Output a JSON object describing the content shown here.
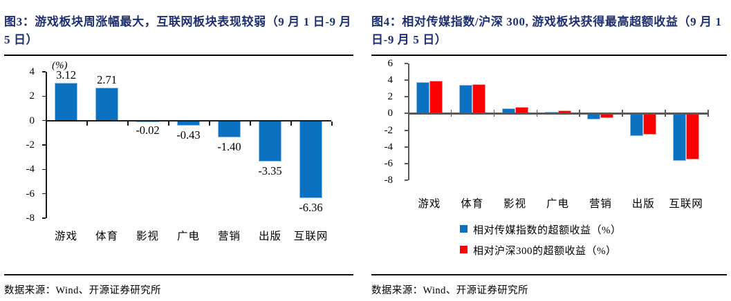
{
  "figures": {
    "left": {
      "title": "图3：游戏板块周涨幅最大，互联网板块表现较弱（9 月 1 日-9 月 5 日）",
      "source": "数据来源：Wind、开源证券研究所"
    },
    "right": {
      "title": "图4：相对传媒指数/沪深 300, 游戏板块获得最高超额收益（9 月 1 日-9 月 5 日）",
      "source": "数据来源：Wind、开源证券研究所"
    }
  },
  "colors": {
    "title_navy": "#1F3070",
    "bar_blue": "#0B72C1",
    "bar_blue_border": "#8FC0E9",
    "bar_red": "#FC0000",
    "bar_red_border": "#FF9D9D",
    "axis_black": "#1a1a1a",
    "axis_gray": "#595959"
  },
  "chart_data": [
    {
      "type": "bar",
      "title": "图3：游戏板块周涨幅最大，互联网板块表现较弱（9 月 1 日-9 月 5 日）",
      "unit_label": "(%)",
      "categories": [
        "游戏",
        "体育",
        "影视",
        "广电",
        "营销",
        "出版",
        "互联网"
      ],
      "values": [
        3.12,
        2.71,
        -0.02,
        -0.43,
        -1.4,
        -3.35,
        -6.36
      ],
      "data_labels": [
        "3.12",
        "2.71",
        "-0.02",
        "-0.43",
        "-1.40",
        "-3.35",
        "-6.36"
      ],
      "ylim": [
        -8,
        4
      ],
      "yticks": [
        4,
        2,
        0,
        -2,
        -4,
        -6,
        -8
      ],
      "grid": false,
      "legend": "none",
      "bar_color": "#0B72C1",
      "bar_border": "#8FC0E9"
    },
    {
      "type": "bar",
      "title": "图4：相对传媒指数/沪深 300, 游戏板块获得最高超额收益（9 月 1 日-9 月 5 日）",
      "categories": [
        "游戏",
        "体育",
        "影视",
        "广电",
        "营销",
        "出版",
        "互联网"
      ],
      "series": [
        {
          "name": "相对传媒指数的超额收益（%）",
          "color": "#0B72C1",
          "border": "#8FC0E9",
          "values": [
            3.8,
            3.4,
            0.6,
            0.2,
            -0.7,
            -2.7,
            -5.7
          ]
        },
        {
          "name": "相对沪深300的超额收益（%）",
          "color": "#FC0000",
          "border": "#FF9D9D",
          "values": [
            3.95,
            3.55,
            0.75,
            0.35,
            -0.55,
            -2.55,
            -5.55
          ]
        }
      ],
      "ylim": [
        -8,
        6
      ],
      "yticks": [
        6,
        4,
        2,
        0,
        -2,
        -4,
        -6,
        -8
      ],
      "grid": false,
      "legend_position": "bottom-left-vertical"
    }
  ]
}
